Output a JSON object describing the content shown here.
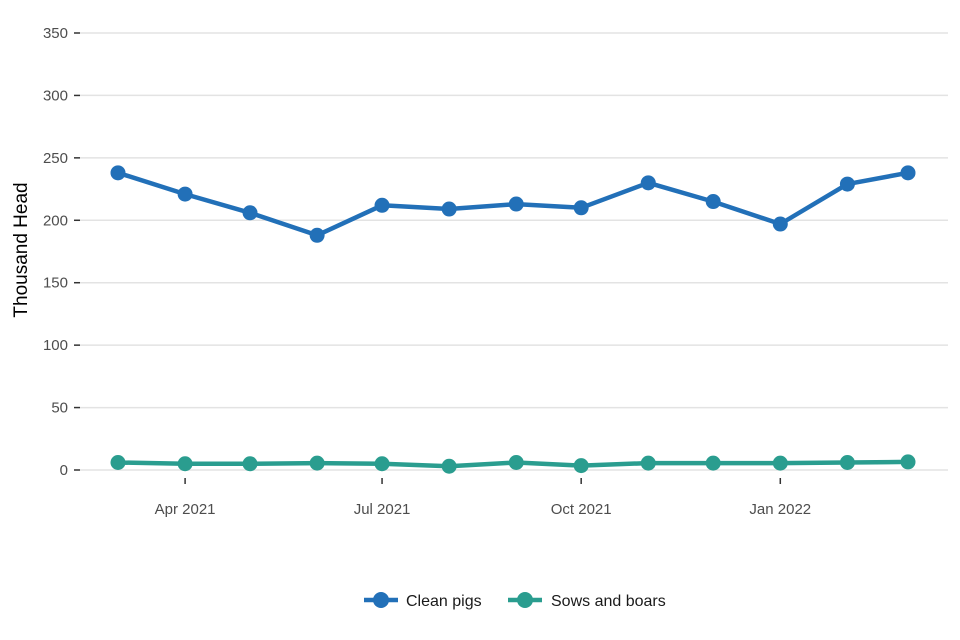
{
  "chart_data": {
    "type": "line",
    "ylabel": "Thousand Head",
    "ylim": [
      0,
      350
    ],
    "yticks": [
      0,
      50,
      100,
      150,
      200,
      250,
      300,
      350
    ],
    "xticks": [
      {
        "date": "2021-04-01",
        "label": "Apr 2021"
      },
      {
        "date": "2021-07-01",
        "label": "Jul 2021"
      },
      {
        "date": "2021-10-01",
        "label": "Oct 2021"
      },
      {
        "date": "2022-01-01",
        "label": "Jan 2022"
      }
    ],
    "x": [
      "2021-03-01",
      "2021-04-01",
      "2021-05-01",
      "2021-06-01",
      "2021-07-01",
      "2021-08-01",
      "2021-09-01",
      "2021-10-01",
      "2021-11-01",
      "2021-12-01",
      "2022-01-01",
      "2022-02-01",
      "2022-03-01"
    ],
    "series": [
      {
        "name": "Clean pigs",
        "color": "#2270b8",
        "values": [
          238,
          221,
          206,
          188,
          212,
          209,
          213,
          210,
          230,
          215,
          197,
          229,
          238
        ]
      },
      {
        "name": "Sows and boars",
        "color": "#2a9d8f",
        "values": [
          6,
          5,
          5,
          5.5,
          5,
          3,
          6,
          3.5,
          5.5,
          5.5,
          5.5,
          6,
          6.5
        ]
      }
    ],
    "grid": true,
    "legend": "bottom"
  }
}
